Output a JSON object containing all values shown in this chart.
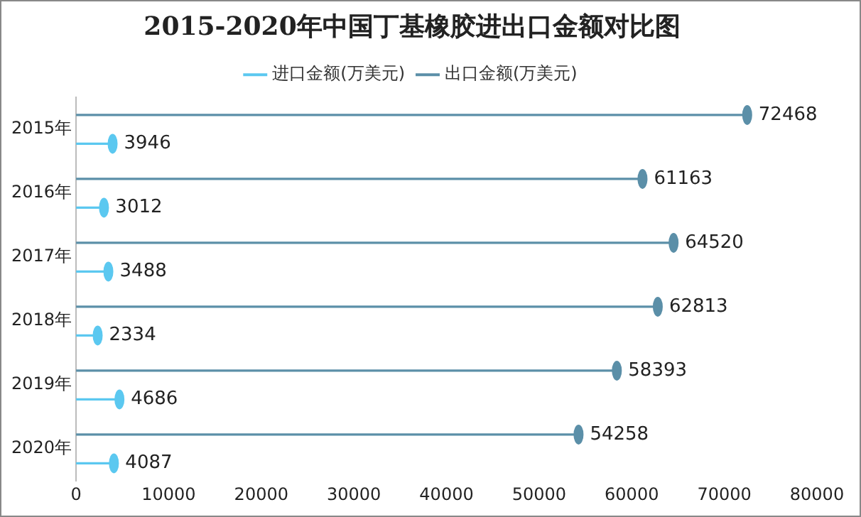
{
  "chart_data": {
    "type": "lollipop",
    "title": "2015-2020年中国丁基橡胶进出口金额对比图",
    "orientation": "horizontal",
    "categories": [
      "2015年",
      "2016年",
      "2017年",
      "2018年",
      "2019年",
      "2020年"
    ],
    "series": [
      {
        "name": "进口金额(万美元)",
        "color": "#5bc8f0",
        "values": [
          3946,
          3012,
          3488,
          2334,
          4686,
          4087
        ]
      },
      {
        "name": "出口金额(万美元)",
        "color": "#5b8fa8",
        "values": [
          72468,
          61163,
          64520,
          62813,
          58393,
          54258
        ]
      }
    ],
    "xlim": [
      0,
      80000
    ],
    "xticks": [
      0,
      10000,
      20000,
      30000,
      40000,
      50000,
      60000,
      70000,
      80000
    ],
    "grid": false,
    "legend": "top",
    "data_labels": true,
    "marker": "circle"
  }
}
